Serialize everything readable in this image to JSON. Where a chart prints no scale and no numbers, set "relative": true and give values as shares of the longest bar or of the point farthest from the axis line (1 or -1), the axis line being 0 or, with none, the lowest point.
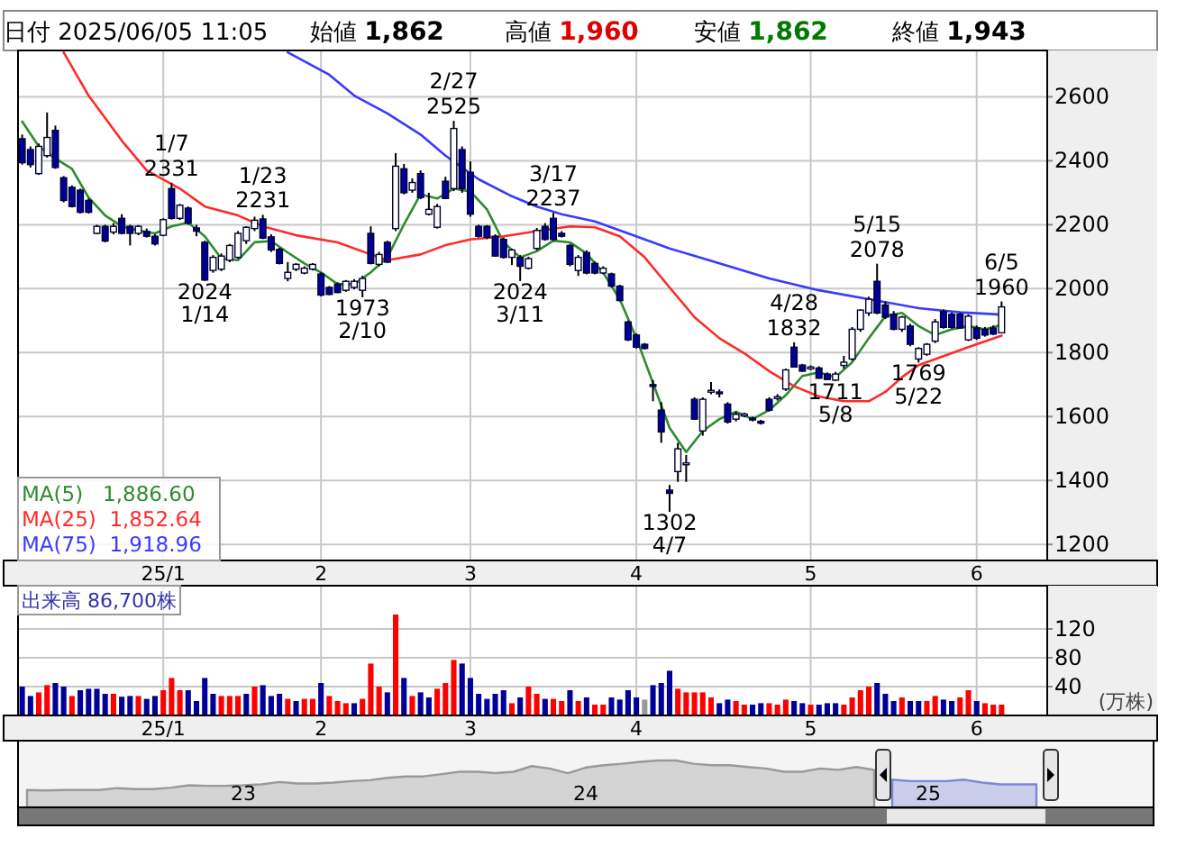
{
  "chart_data": [
    {
      "type": "candlestick",
      "annotations": [
        "日付 2025/06/05 11:05",
        "始値 1,862",
        "高値 1,960",
        "安値 1,862",
        "終値 1,943"
      ],
      "categories": [
        null,
        null,
        null,
        null,
        null,
        null,
        null,
        null,
        null,
        null,
        null,
        null,
        null,
        null,
        null,
        null,
        null,
        "25/1",
        null,
        null,
        null,
        null,
        null,
        null,
        null,
        null,
        null,
        null,
        null,
        null,
        null,
        null,
        null,
        null,
        null,
        null,
        "2",
        null,
        null,
        null,
        null,
        null,
        null,
        null,
        null,
        null,
        null,
        null,
        null,
        null,
        null,
        null,
        null,
        null,
        "3",
        null,
        null,
        null,
        null,
        null,
        null,
        null,
        null,
        null,
        null,
        null,
        null,
        null,
        null,
        null,
        null,
        null,
        null,
        null,
        "4",
        null,
        null,
        null,
        null,
        null,
        null,
        null,
        null,
        null,
        null,
        null,
        null,
        null,
        null,
        null,
        null,
        null,
        null,
        null,
        null,
        "5",
        null,
        null,
        null,
        null,
        null,
        null,
        null,
        null,
        null,
        null,
        null,
        null,
        null,
        null,
        null,
        null,
        null,
        null,
        null,
        "6",
        null,
        null,
        null
      ],
      "ohlc": [
        [
          2469,
          2482,
          2388,
          2394
        ],
        [
          2435,
          2445,
          2379,
          2388
        ],
        [
          2360,
          2454,
          2356,
          2445
        ],
        [
          2416,
          2551,
          2410,
          2473
        ],
        [
          2495,
          2510,
          2375,
          2379
        ],
        [
          2347,
          2352,
          2270,
          2276
        ],
        [
          2317,
          2323,
          2254,
          2257
        ],
        [
          2308,
          2313,
          2235,
          2239
        ],
        [
          2276,
          2282,
          2235,
          2239
        ],
        [
          2173,
          2200,
          2170,
          2195
        ],
        [
          2195,
          2200,
          2145,
          2149
        ],
        [
          2177,
          2205,
          2170,
          2195
        ],
        [
          2220,
          2233,
          2170,
          2173
        ],
        [
          2195,
          2200,
          2135,
          2173
        ],
        [
          2173,
          2199,
          2167,
          2195
        ],
        [
          2179,
          2188,
          2160,
          2164
        ],
        [
          2164,
          2170,
          2135,
          2140
        ],
        [
          2167,
          2220,
          2164,
          2216
        ],
        [
          2313,
          2331,
          2216,
          2220
        ],
        [
          2220,
          2265,
          2215,
          2261
        ],
        [
          2252,
          2257,
          2200,
          2205
        ],
        [
          2190,
          2200,
          2164,
          2180
        ],
        [
          2145,
          2150,
          2024,
          2027
        ],
        [
          2057,
          2105,
          2050,
          2098
        ],
        [
          2061,
          2110,
          2055,
          2102
        ],
        [
          2089,
          2140,
          2083,
          2135
        ],
        [
          2098,
          2180,
          2094,
          2173
        ],
        [
          2150,
          2195,
          2140,
          2192
        ],
        [
          2188,
          2225,
          2180,
          2214
        ],
        [
          2218,
          2231,
          2155,
          2158
        ],
        [
          2162,
          2170,
          2115,
          2121
        ],
        [
          2123,
          2128,
          2076,
          2079
        ],
        [
          2032,
          2083,
          2023,
          2051
        ],
        [
          2061,
          2080,
          2055,
          2076
        ],
        [
          2049,
          2070,
          2045,
          2064
        ],
        [
          2061,
          2080,
          2057,
          2076
        ],
        [
          2046,
          2051,
          1976,
          1980
        ],
        [
          2004,
          2008,
          1980,
          1982
        ],
        [
          2014,
          2020,
          1986,
          1988
        ],
        [
          1995,
          2027,
          1990,
          2023
        ],
        [
          2004,
          2030,
          1998,
          2023
        ],
        [
          1995,
          2040,
          1973,
          2032
        ],
        [
          2173,
          2195,
          2076,
          2079
        ],
        [
          2076,
          2115,
          2070,
          2107
        ],
        [
          2145,
          2150,
          2080,
          2083
        ],
        [
          2188,
          2424,
          2180,
          2383
        ],
        [
          2375,
          2390,
          2295,
          2300
        ],
        [
          2308,
          2345,
          2300,
          2332
        ],
        [
          2360,
          2370,
          2280,
          2285
        ],
        [
          2233,
          2300,
          2229,
          2248
        ],
        [
          2192,
          2265,
          2188,
          2257
        ],
        [
          2336,
          2350,
          2280,
          2282
        ],
        [
          2313,
          2525,
          2305,
          2501
        ],
        [
          2435,
          2445,
          2300,
          2313
        ],
        [
          2364,
          2398,
          2225,
          2233
        ],
        [
          2195,
          2200,
          2160,
          2164
        ],
        [
          2195,
          2199,
          2155,
          2160
        ],
        [
          2164,
          2170,
          2100,
          2102
        ],
        [
          2154,
          2160,
          2094,
          2098
        ],
        [
          2098,
          2125,
          2074,
          2121
        ],
        [
          2098,
          2105,
          2024,
          2070
        ],
        [
          2064,
          2100,
          2060,
          2094
        ],
        [
          2126,
          2190,
          2120,
          2182
        ],
        [
          2195,
          2205,
          2150,
          2154
        ],
        [
          2220,
          2237,
          2150,
          2154
        ],
        [
          2173,
          2180,
          2160,
          2164
        ],
        [
          2135,
          2140,
          2070,
          2076
        ],
        [
          2057,
          2105,
          2040,
          2098
        ],
        [
          2113,
          2120,
          2045,
          2049
        ],
        [
          2079,
          2085,
          2045,
          2049
        ],
        [
          2049,
          2070,
          2045,
          2064
        ],
        [
          2046,
          2050,
          2004,
          2008
        ],
        [
          2008,
          2012,
          1960,
          1963
        ],
        [
          1896,
          1900,
          1836,
          1840
        ],
        [
          1855,
          1860,
          1813,
          1817
        ],
        [
          1826,
          1830,
          1810,
          1813
        ],
        [
          1700,
          1714,
          1648,
          1695
        ],
        [
          1620,
          1645,
          1518,
          1552
        ],
        [
          1370,
          1386,
          1302,
          1360
        ],
        [
          1428,
          1518,
          1396,
          1499
        ],
        [
          1450,
          1480,
          1396,
          1455
        ],
        [
          1654,
          1660,
          1590,
          1592
        ],
        [
          1555,
          1660,
          1540,
          1654
        ],
        [
          1677,
          1708,
          1670,
          1682
        ],
        [
          1677,
          1685,
          1660,
          1675
        ],
        [
          1639,
          1645,
          1578,
          1583
        ],
        [
          1592,
          1615,
          1585,
          1607
        ],
        [
          1605,
          1612,
          1598,
          1608
        ],
        [
          1595,
          1600,
          1585,
          1592
        ],
        [
          1585,
          1590,
          1575,
          1583
        ],
        [
          1654,
          1660,
          1616,
          1620
        ],
        [
          1660,
          1670,
          1650,
          1662
        ],
        [
          1686,
          1750,
          1680,
          1746
        ],
        [
          1817,
          1832,
          1755,
          1755
        ],
        [
          1761,
          1765,
          1740,
          1742
        ],
        [
          1752,
          1760,
          1745,
          1755
        ],
        [
          1752,
          1757,
          1718,
          1720
        ],
        [
          1733,
          1738,
          1714,
          1716
        ],
        [
          1714,
          1740,
          1711,
          1733
        ],
        [
          1760,
          1790,
          1750,
          1770
        ],
        [
          1780,
          1880,
          1775,
          1873
        ],
        [
          1873,
          1935,
          1865,
          1933
        ],
        [
          1924,
          1975,
          1915,
          1967
        ],
        [
          2023,
          2078,
          1920,
          1924
        ],
        [
          1949,
          1960,
          1905,
          1911
        ],
        [
          1920,
          1930,
          1870,
          1873
        ],
        [
          1873,
          1915,
          1865,
          1911
        ],
        [
          1883,
          1890,
          1820,
          1826
        ],
        [
          1780,
          1817,
          1769,
          1813
        ],
        [
          1795,
          1830,
          1790,
          1826
        ],
        [
          1836,
          1905,
          1830,
          1896
        ],
        [
          1929,
          1935,
          1875,
          1879
        ],
        [
          1920,
          1925,
          1875,
          1879
        ],
        [
          1920,
          1925,
          1875,
          1877
        ],
        [
          1840,
          1920,
          1836,
          1914
        ],
        [
          1877,
          1885,
          1840,
          1845
        ],
        [
          1873,
          1880,
          1850,
          1855
        ],
        [
          1877,
          1885,
          1855,
          1858
        ],
        [
          1862,
          1960,
          1862,
          1943
        ]
      ],
      "colors": [
        "#000099",
        "#000099",
        "#ffffff",
        "#ffffff",
        "#000099",
        "#000099",
        "#000099",
        "#000099",
        "#000099",
        "#ffffff",
        "#000099",
        "#ffffff",
        "#000099",
        "#000099",
        "#ffffff",
        "#000099",
        "#000099",
        "#ffffff",
        "#000099",
        "#ffffff",
        "#000099",
        "#000099",
        "#000099",
        "#ffffff",
        "#ffffff",
        "#ffffff",
        "#ffffff",
        "#ffffff",
        "#ffffff",
        "#000099",
        "#000099",
        "#000099",
        "#ffffff",
        "#ffffff",
        "#ffffff",
        "#ffffff",
        "#000099",
        "#000099",
        "#000099",
        "#ffffff",
        "#ffffff",
        "#ffffff",
        "#000099",
        "#ffffff",
        "#000099",
        "#ffffff",
        "#000099",
        "#ffffff",
        "#000099",
        "#ffffff",
        "#ffffff",
        "#000099",
        "#ffffff",
        "#000099",
        "#000099",
        "#000099",
        "#000099",
        "#000099",
        "#000099",
        "#ffffff",
        "#000099",
        "#ffffff",
        "#ffffff",
        "#000099",
        "#000099",
        "#000099",
        "#000099",
        "#ffffff",
        "#000099",
        "#000099",
        "#ffffff",
        "#000099",
        "#000099",
        "#000099",
        "#000099",
        "#000099",
        "#000099",
        "#000099",
        "#000099",
        "#ffffff",
        "#ffffff",
        "#000099",
        "#ffffff",
        "#ffffff",
        "#000099",
        "#000099",
        "#ffffff",
        "#ffffff",
        "#000099",
        "#000099",
        "#000099",
        "#ffffff",
        "#ffffff",
        "#000099",
        "#000099",
        "#ffffff",
        "#000099",
        "#000099",
        "#ffffff",
        "#ffffff",
        "#ffffff",
        "#ffffff",
        "#ffffff",
        "#000099",
        "#000099",
        "#000099",
        "#ffffff",
        "#000099",
        "#ffffff",
        "#ffffff",
        "#ffffff",
        "#000099",
        "#000099",
        "#000099",
        "#ffffff",
        "#000099",
        "#000099",
        "#000099",
        "#ffffff"
      ],
      "value_labels": [
        null,
        null,
        null,
        null,
        null,
        null,
        null,
        null,
        null,
        null,
        null,
        null,
        null,
        null,
        null,
        null,
        null,
        null,
        "1/7\n2331",
        null,
        null,
        null,
        "2024\n1/14",
        null,
        null,
        null,
        null,
        null,
        null,
        "1/23\n2231",
        null,
        null,
        null,
        null,
        null,
        null,
        null,
        null,
        null,
        null,
        null,
        "1973\n2/10",
        null,
        null,
        null,
        null,
        null,
        null,
        null,
        null,
        null,
        null,
        "2/27\n2525",
        null,
        null,
        null,
        null,
        null,
        null,
        null,
        "2024\n3/11",
        null,
        null,
        null,
        "3/17\n2237",
        null,
        null,
        null,
        null,
        null,
        null,
        null,
        null,
        null,
        null,
        null,
        null,
        null,
        "1302\n4/7",
        null,
        null,
        null,
        null,
        null,
        null,
        null,
        null,
        null,
        null,
        null,
        null,
        null,
        null,
        "4/28\n1832",
        null,
        null,
        null,
        null,
        "1711\n5/8",
        null,
        null,
        null,
        null,
        "5/15\n2078",
        null,
        null,
        null,
        null,
        "1769\n5/22",
        null,
        null,
        null,
        null,
        null,
        null,
        null,
        null,
        null,
        "6/5\n1960"
      ],
      "series": [
        {
          "type": "line",
          "name": "MA(5)   1,886.60",
          "color": "#2e8b2e",
          "values": [
            2523,
            null,
            2445,
            null,
            2407,
            null,
            2375,
            null,
            2285,
            null,
            2229,
            null,
            2195,
            null,
            2182,
            null,
            2173,
            null,
            2195,
            null,
            2207,
            null,
            2164,
            null,
            2094,
            null,
            2089,
            null,
            2145,
            null,
            2149,
            null,
            2113,
            null,
            2079,
            null,
            2051,
            null,
            2014,
            null,
            2014,
            null,
            2051,
            null,
            2098,
            null,
            2201,
            null,
            2295,
            null,
            2282,
            null,
            2313,
            null,
            2304,
            null,
            2248,
            null,
            2145,
            null,
            2098,
            null,
            2117,
            null,
            2150,
            null,
            2145,
            null,
            2110,
            null,
            2050,
            null,
            1967,
            null,
            1845,
            null,
            1705,
            null,
            1565,
            null,
            1489,
            null,
            1555,
            null,
            1592,
            null,
            1615,
            null,
            1592,
            null,
            1620,
            null,
            1667,
            null,
            1727,
            null,
            1738,
            null,
            1723,
            null,
            1770,
            null,
            1845,
            null,
            1914,
            null,
            1924,
            null,
            1883,
            null,
            1855,
            null,
            1873,
            null,
            1883,
            null,
            1873,
            null,
            1887
          ]
        },
        {
          "type": "line",
          "name": "MA(25)  1,852.64",
          "color": "#ff2a2a",
          "values": [
            null,
            null,
            null,
            null,
            null,
            2739,
            null,
            null,
            2604,
            null,
            null,
            null,
            2463,
            null,
            null,
            2370,
            null,
            null,
            null,
            2313,
            null,
            null,
            2257,
            null,
            null,
            null,
            2229,
            null,
            null,
            2195,
            null,
            null,
            null,
            2167,
            null,
            null,
            null,
            null,
            2145,
            null,
            null,
            null,
            2107,
            null,
            2089,
            null,
            null,
            null,
            2107,
            null,
            null,
            2136,
            null,
            null,
            2154,
            null,
            null,
            null,
            2164,
            null,
            null,
            null,
            2180,
            null,
            null,
            null,
            2195,
            null,
            null,
            2192,
            null,
            null,
            2164,
            null,
            null,
            2098,
            null,
            null,
            2004,
            null,
            null,
            1911,
            null,
            null,
            1845,
            null,
            null,
            1798,
            null,
            null,
            1742,
            null,
            null,
            1695,
            null,
            null,
            1663,
            null,
            null,
            1648,
            null,
            null,
            1648,
            null,
            1677,
            null,
            1723,
            null,
            1761,
            null,
            null,
            1789,
            null,
            null,
            1817,
            null,
            null,
            null,
            1853
          ]
        },
        {
          "type": "line",
          "name": "MA(75)  1,918.96",
          "color": "#3a3aff",
          "values": [
            null,
            null,
            null,
            null,
            null,
            null,
            null,
            null,
            null,
            null,
            null,
            null,
            null,
            null,
            null,
            null,
            null,
            null,
            null,
            null,
            null,
            null,
            null,
            null,
            null,
            null,
            null,
            null,
            null,
            null,
            null,
            null,
            2739,
            null,
            null,
            null,
            null,
            2669,
            null,
            null,
            2604,
            null,
            null,
            null,
            2548,
            null,
            null,
            null,
            2482,
            null,
            null,
            2416,
            null,
            null,
            null,
            2342,
            null,
            null,
            null,
            2289,
            null,
            null,
            2257,
            null,
            null,
            2233,
            null,
            null,
            null,
            2210,
            null,
            null,
            null,
            2173,
            null,
            null,
            null,
            null,
            2126,
            null,
            null,
            null,
            null,
            null,
            2079,
            null,
            null,
            null,
            null,
            null,
            2032,
            null,
            null,
            null,
            null,
            null,
            1995,
            null,
            null,
            null,
            null,
            null,
            1967,
            null,
            null,
            null,
            null,
            null,
            1939,
            null,
            null,
            null,
            null,
            1926,
            null,
            null,
            null,
            null,
            1919
          ]
        }
      ],
      "ylim": [
        1150,
        2745
      ],
      "yticks": [
        1200,
        1400,
        1600,
        1800,
        2000,
        2200,
        2400,
        2600
      ],
      "grid": true,
      "legend": "bottom left"
    },
    {
      "type": "bar",
      "annotations": [
        "出来高 86,700株"
      ],
      "ylabel": "(万株)",
      "categories": [
        null,
        null,
        null,
        null,
        null,
        null,
        null,
        null,
        null,
        null,
        null,
        null,
        null,
        null,
        null,
        null,
        null,
        "25/1",
        null,
        null,
        null,
        null,
        null,
        null,
        null,
        null,
        null,
        null,
        null,
        null,
        null,
        null,
        null,
        null,
        null,
        null,
        "2",
        null,
        null,
        null,
        null,
        null,
        null,
        null,
        null,
        null,
        null,
        null,
        null,
        null,
        null,
        null,
        null,
        null,
        "3",
        null,
        null,
        null,
        null,
        null,
        null,
        null,
        null,
        null,
        null,
        null,
        null,
        null,
        null,
        null,
        null,
        null,
        null,
        null,
        "4",
        null,
        null,
        null,
        null,
        null,
        null,
        null,
        null,
        null,
        null,
        null,
        null,
        null,
        null,
        null,
        null,
        null,
        null,
        null,
        null,
        "5",
        null,
        null,
        null,
        null,
        null,
        null,
        null,
        null,
        null,
        null,
        null,
        null,
        null,
        null,
        null,
        null,
        null,
        null,
        null,
        "6",
        null,
        null,
        null
      ],
      "values": [
        40,
        27,
        32,
        42,
        45,
        40,
        27,
        35,
        37,
        37,
        30,
        30,
        26,
        27,
        27,
        23,
        27,
        35,
        52,
        35,
        35,
        20,
        52,
        30,
        27,
        27,
        27,
        30,
        40,
        42,
        27,
        30,
        23,
        20,
        23,
        23,
        45,
        27,
        20,
        17,
        17,
        23,
        72,
        40,
        32,
        140,
        52,
        27,
        32,
        25,
        37,
        45,
        77,
        72,
        52,
        30,
        23,
        30,
        35,
        17,
        25,
        40,
        30,
        23,
        23,
        20,
        35,
        20,
        25,
        15,
        15,
        25,
        22,
        35,
        25,
        22,
        42,
        45,
        62,
        37,
        32,
        32,
        32,
        25,
        17,
        22,
        20,
        15,
        15,
        17,
        17,
        15,
        22,
        20,
        17,
        15,
        15,
        17,
        17,
        15,
        25,
        35,
        40,
        45,
        30,
        20,
        25,
        20,
        20,
        20,
        27,
        22,
        20,
        25,
        35,
        20,
        17,
        15,
        15
      ],
      "colors": [
        "#000099",
        "#000099",
        "#ff0000",
        "#ff0000",
        "#000099",
        "#000099",
        "#ff0000",
        "#000099",
        "#000099",
        "#000099",
        "#000099",
        "#ff0000",
        "#000099",
        "#000099",
        "#ff0000",
        "#000099",
        "#000099",
        "#ff0000",
        "#ff0000",
        "#ff0000",
        "#000099",
        "#000099",
        "#000099",
        "#000099",
        "#ff0000",
        "#ff0000",
        "#ff0000",
        "#000099",
        "#ff0000",
        "#000099",
        "#000099",
        "#000099",
        "#ff0000",
        "#000099",
        "#ff0000",
        "#ff0000",
        "#000099",
        "#ff0000",
        "#ff0000",
        "#ff0000",
        "#000099",
        "#ff0000",
        "#ff0000",
        "#ff0000",
        "#000099",
        "#ff0000",
        "#000099",
        "#ff0000",
        "#000099",
        "#000099",
        "#ff0000",
        "#ff0000",
        "#ff0000",
        "#000099",
        "#000099",
        "#000099",
        "#000099",
        "#000099",
        "#000099",
        "#ff0000",
        "#000099",
        "#ff0000",
        "#ff0000",
        "#000099",
        "#ff0000",
        "#ff0000",
        "#000099",
        "#ff0000",
        "#000099",
        "#ff0000",
        "#ff0000",
        "#000099",
        "#000099",
        "#000099",
        "#000099",
        "#999999",
        "#000099",
        "#000099",
        "#000099",
        "#ff0000",
        "#ff0000",
        "#ff0000",
        "#ff0000",
        "#ff0000",
        "#000099",
        "#000099",
        "#ff0000",
        "#ff0000",
        "#000099",
        "#000099",
        "#ff0000",
        "#ff0000",
        "#ff0000",
        "#000099",
        "#000099",
        "#ff0000",
        "#000099",
        "#000099",
        "#000099",
        "#ff0000",
        "#ff0000",
        "#ff0000",
        "#ff0000",
        "#000099",
        "#000099",
        "#000099",
        "#ff0000",
        "#000099",
        "#000099",
        "#ff0000",
        "#ff0000",
        "#000099",
        "#000099",
        "#ff0000",
        "#ff0000",
        "#000099",
        "#ff0000",
        "#ff0000",
        "#ff0000"
      ],
      "ylim": [
        0,
        180
      ],
      "yticks": [
        40,
        80,
        120
      ],
      "grid": true
    },
    {
      "type": "area",
      "relative": true,
      "categories": [
        null,
        null,
        null,
        null,
        null,
        null,
        null,
        null,
        null,
        null,
        null,
        null,
        "23",
        null,
        null,
        null,
        null,
        null,
        null,
        null,
        null,
        null,
        null,
        null,
        null,
        null,
        null,
        null,
        null,
        null,
        null,
        "24",
        null,
        null,
        null,
        null,
        null,
        null,
        null,
        null,
        null,
        null,
        null,
        null,
        null,
        null,
        null,
        null,
        null,
        null,
        "25",
        null,
        null,
        null,
        null,
        null,
        null,
        null,
        null,
        null,
        null,
        null,
        null
      ],
      "series": [
        {
          "color": "#999999",
          "values": [
            0.37,
            0.36,
            0.37,
            0.37,
            0.37,
            0.41,
            0.39,
            0.39,
            0.42,
            0.47,
            0.46,
            0.46,
            0.47,
            0.49,
            0.54,
            0.51,
            0.51,
            0.53,
            0.56,
            0.58,
            0.63,
            0.66,
            0.66,
            0.71,
            0.76,
            0.76,
            0.73,
            0.76,
            0.88,
            0.83,
            0.73,
            0.85,
            0.9,
            0.93,
            0.97,
            1,
            1,
            0.93,
            0.9,
            0.9,
            0.86,
            0.83,
            0.76,
            0.76,
            0.83,
            0.8,
            0.86,
            0.8,
            null,
            null,
            null,
            null,
            null,
            null,
            null,
            null,
            null,
            null,
            null,
            null,
            null,
            null,
            null
          ]
        },
        {
          "color": "#7b86d8",
          "values": [
            null,
            null,
            null,
            null,
            null,
            null,
            null,
            null,
            null,
            null,
            null,
            null,
            null,
            null,
            null,
            null,
            null,
            null,
            null,
            null,
            null,
            null,
            null,
            null,
            null,
            null,
            null,
            null,
            null,
            null,
            null,
            null,
            null,
            null,
            null,
            null,
            null,
            null,
            null,
            null,
            null,
            null,
            null,
            null,
            null,
            null,
            null,
            null,
            0.59,
            0.56,
            0.56,
            0.56,
            0.59,
            0.53,
            0.49,
            0.49,
            0.49,
            null,
            null,
            null,
            null,
            null,
            null
          ]
        }
      ]
    }
  ]
}
